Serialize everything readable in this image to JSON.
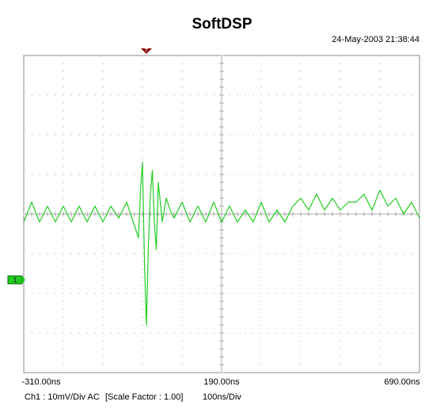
{
  "header": {
    "title": "SoftDSP",
    "timestamp": "24-May-2003 21:38:44"
  },
  "chart_data": {
    "type": "line",
    "x_ticks": [
      "-310.00ns",
      "190.00ns",
      "690.00ns"
    ],
    "xlim": [
      -310,
      690
    ],
    "x_unit": "ns",
    "ylim": [
      -4,
      4
    ],
    "y_unit": "div",
    "grid": true,
    "divisions": {
      "x": 10,
      "y": 8
    },
    "channel_marker": "1",
    "trigger_time": 0,
    "series": [
      {
        "color": "#22cc22",
        "x": [
          -310,
          -290,
          -270,
          -250,
          -230,
          -210,
          -190,
          -170,
          -150,
          -130,
          -110,
          -90,
          -70,
          -50,
          -30,
          -20,
          -15,
          -10,
          -5,
          0,
          5,
          10,
          15,
          20,
          25,
          30,
          40,
          50,
          60,
          70,
          90,
          110,
          130,
          150,
          170,
          190,
          210,
          230,
          250,
          270,
          290,
          310,
          330,
          350,
          370,
          390,
          410,
          430,
          450,
          470,
          490,
          510,
          530,
          550,
          570,
          590,
          610,
          630,
          650,
          670,
          690
        ],
        "y": [
          -0.2,
          0.3,
          -0.2,
          0.2,
          -0.2,
          0.2,
          -0.2,
          0.2,
          -0.2,
          0.2,
          -0.2,
          0.2,
          -0.1,
          0.3,
          -0.3,
          -0.6,
          0.6,
          1.3,
          -1.2,
          -2.8,
          -0.8,
          0.5,
          1.1,
          -0.2,
          -0.9,
          0.8,
          -0.2,
          0.4,
          0.1,
          -0.1,
          0.3,
          -0.2,
          0.2,
          -0.2,
          0.3,
          -0.2,
          0.2,
          -0.2,
          0.1,
          -0.2,
          0.3,
          -0.2,
          0.1,
          -0.2,
          0.2,
          0.4,
          0.1,
          0.5,
          0.1,
          0.4,
          0.1,
          0.3,
          0.3,
          0.5,
          0.1,
          0.6,
          0.2,
          0.4,
          0.0,
          0.3,
          -0.1
        ]
      }
    ]
  },
  "footer": {
    "channel": "Ch1 : 10mV/Div  AC",
    "scale": "[Scale Factor : 1.00]",
    "timebase": "100ns/Div"
  }
}
